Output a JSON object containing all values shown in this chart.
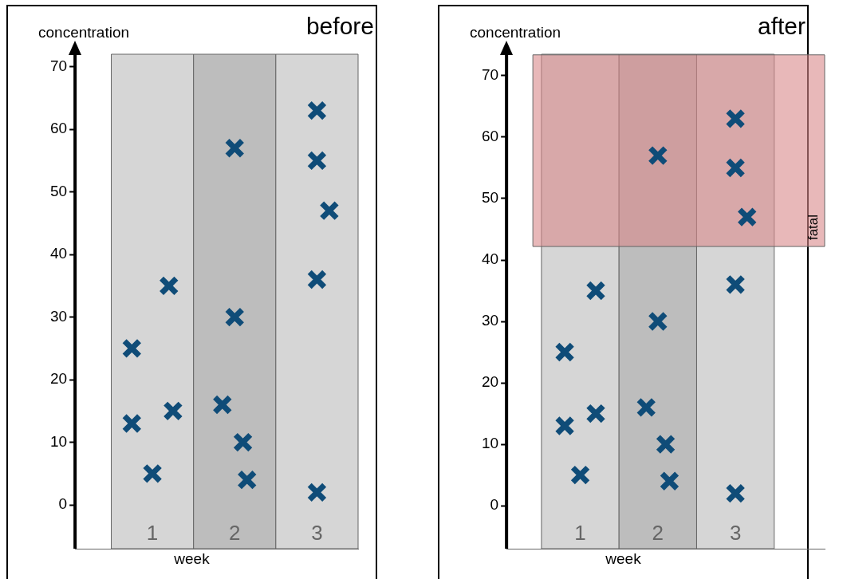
{
  "chart_data": [
    {
      "type": "scatter",
      "title": "before",
      "xlabel": "week",
      "ylabel": "concentration",
      "xlim": [
        0.06,
        3.5
      ],
      "xticks": [
        1,
        2,
        3
      ],
      "ylim": [
        -7,
        72
      ],
      "yticks": [
        0,
        10,
        20,
        30,
        40,
        50,
        60,
        70
      ],
      "grid": false,
      "legend": false,
      "marker": "cross",
      "bands": [
        {
          "axis": "x",
          "from": 0.5,
          "to": 1.5,
          "color": "#d6d6d6"
        },
        {
          "axis": "x",
          "from": 1.5,
          "to": 2.5,
          "color": "#bdbdbd"
        },
        {
          "axis": "x",
          "from": 2.5,
          "to": 3.5,
          "color": "#d6d6d6"
        }
      ],
      "series": [
        {
          "color": "#0f4c78",
          "x": [
            0.75,
            1.2,
            0.75,
            1.25,
            1.0,
            2.0,
            2.0,
            1.85,
            2.1,
            2.15,
            3,
            3,
            3.15,
            3,
            3
          ],
          "values": [
            25,
            35,
            13,
            15,
            5,
            57,
            30,
            16,
            10,
            4,
            63,
            55,
            47,
            36,
            2
          ]
        }
      ]
    },
    {
      "type": "scatter",
      "title": "after",
      "xlabel": "week",
      "ylabel": "concentration",
      "xlim": [
        0.05,
        4.15
      ],
      "xticks": [
        1,
        2,
        3
      ],
      "ylim": [
        -7,
        73.5
      ],
      "yticks": [
        0,
        10,
        20,
        30,
        40,
        50,
        60,
        70
      ],
      "grid": false,
      "legend": false,
      "marker": "cross",
      "bands": [
        {
          "axis": "x",
          "from": 0.5,
          "to": 1.5,
          "color": "#d6d6d6"
        },
        {
          "axis": "x",
          "from": 1.5,
          "to": 2.5,
          "color": "#bdbdbd"
        },
        {
          "axis": "x",
          "from": 2.5,
          "to": 3.5,
          "color": "#d6d6d6"
        },
        {
          "axis": "y",
          "from": 42.2,
          "to": 73.4,
          "label": "fatal",
          "color": "#d9888a"
        }
      ],
      "series": [
        {
          "color": "#0f4c78",
          "x": [
            0.8,
            1.2,
            0.8,
            1.2,
            1.0,
            2.0,
            2.0,
            1.85,
            2.1,
            2.15,
            3,
            3,
            3.15,
            3,
            3
          ],
          "values": [
            25,
            35,
            13,
            15,
            5,
            57,
            30,
            16,
            10,
            4,
            63,
            55,
            47,
            36,
            2
          ]
        }
      ]
    }
  ]
}
